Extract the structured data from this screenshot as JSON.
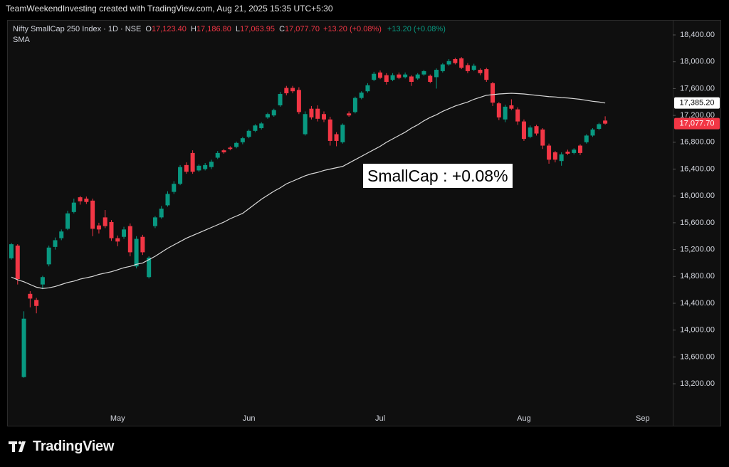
{
  "header": "TeamWeekendInvesting created with TradingView.com, Aug 21, 2025 15:35 UTC+5:30",
  "chart_data": {
    "type": "candlestick",
    "legend": {
      "symbol": "Nifty SmallCap 250 Index · 1D · NSE",
      "ohlc": [
        {
          "key": "O",
          "value": "17,123.40"
        },
        {
          "key": "H",
          "value": "17,186.80"
        },
        {
          "key": "L",
          "value": "17,063.95"
        },
        {
          "key": "C",
          "value": "17,077.70"
        }
      ],
      "change": [
        "+13.20 (+0.08%)",
        "+13.20 (+0.08%)"
      ]
    },
    "annotation": "SmallCap : +0.08%",
    "categories": [
      null,
      null,
      null,
      null,
      null,
      null,
      null,
      null,
      null,
      null,
      null,
      null,
      null,
      null,
      null,
      null,
      null,
      "May",
      null,
      null,
      null,
      null,
      null,
      null,
      null,
      null,
      null,
      null,
      null,
      null,
      null,
      null,
      null,
      null,
      null,
      null,
      null,
      null,
      "Jun",
      null,
      null,
      null,
      null,
      null,
      null,
      null,
      null,
      null,
      null,
      null,
      null,
      null,
      null,
      null,
      null,
      null,
      null,
      null,
      null,
      "Jul",
      null,
      null,
      null,
      null,
      null,
      null,
      null,
      null,
      null,
      null,
      null,
      null,
      null,
      null,
      null,
      null,
      null,
      null,
      null,
      null,
      null,
      null,
      "Aug",
      null,
      null,
      null,
      null,
      null,
      null,
      null,
      null,
      null,
      null,
      null,
      null,
      null,
      null,
      null,
      null,
      null,
      null,
      "Sep"
    ],
    "open": [
      15070,
      15260,
      13300,
      14540,
      14450,
      14680,
      14980,
      15240,
      15370,
      15510,
      15760,
      15980,
      15960,
      15930,
      15560,
      15680,
      15610,
      15370,
      15390,
      15550,
      14950,
      15390,
      14790,
      15550,
      15680,
      15860,
      16060,
      16180,
      16460,
      16640,
      16380,
      16400,
      16430,
      16570,
      16680,
      16720,
      16730,
      16800,
      16880,
      16970,
      17010,
      17170,
      17200,
      17350,
      17610,
      17610,
      17580,
      16920,
      17300,
      17300,
      17220,
      17140,
      16920,
      16800,
      17230,
      17250,
      17460,
      17560,
      17730,
      17840,
      17800,
      17730,
      17810,
      17770,
      17780,
      17750,
      17810,
      17790,
      17770,
      17860,
      17960,
      18040,
      18050,
      17950,
      17880,
      17880,
      17890,
      17680,
      17380,
      17140,
      17350,
      17290,
      17110,
      16880,
      17040,
      16990,
      16750,
      16650,
      16520,
      16660,
      16640,
      16750,
      16800,
      16900,
      17000,
      17123.4,
      null,
      null,
      null,
      null,
      null,
      null
    ],
    "high": [
      15300,
      15280,
      14280,
      14580,
      14480,
      14810,
      15260,
      15380,
      15500,
      15780,
      15960,
      16000,
      15990,
      15960,
      15600,
      15790,
      15640,
      15410,
      15540,
      15590,
      15400,
      15420,
      15100,
      15700,
      15850,
      16070,
      16220,
      16460,
      16500,
      16680,
      16470,
      16490,
      16540,
      16670,
      16700,
      16740,
      16810,
      16880,
      16990,
      17070,
      17100,
      17240,
      17300,
      17550,
      17640,
      17640,
      17620,
      17260,
      17340,
      17350,
      17260,
      17180,
      16950,
      17080,
      17260,
      17480,
      17560,
      17680,
      17850,
      17870,
      17830,
      17830,
      17840,
      17840,
      17800,
      17830,
      17880,
      17810,
      17900,
      17980,
      18040,
      18060,
      18070,
      17980,
      17970,
      17900,
      17910,
      17700,
      17400,
      17360,
      17440,
      17320,
      17140,
      17050,
      17060,
      17010,
      16780,
      16670,
      16650,
      16690,
      16710,
      16770,
      16920,
      17010,
      17090,
      17186.8,
      null,
      null,
      null,
      null,
      null,
      null
    ],
    "low": [
      15050,
      14680,
      13290,
      14340,
      14250,
      14610,
      14950,
      15200,
      15340,
      15490,
      15740,
      15870,
      15880,
      15400,
      15440,
      15520,
      15330,
      15250,
      15360,
      15100,
      14920,
      15120,
      14770,
      15520,
      15660,
      15840,
      16030,
      16160,
      16330,
      16330,
      16360,
      16380,
      16400,
      16550,
      16630,
      16680,
      16710,
      16770,
      16860,
      16950,
      16990,
      17150,
      17180,
      17330,
      17500,
      17530,
      17220,
      16900,
      17140,
      17110,
      17100,
      16750,
      16740,
      16780,
      17180,
      17230,
      17440,
      17540,
      17710,
      17740,
      17660,
      17710,
      17740,
      17750,
      17640,
      17730,
      17790,
      17680,
      17600,
      17840,
      17940,
      17960,
      17890,
      17830,
      17860,
      17800,
      17700,
      17340,
      17130,
      17100,
      17280,
      17060,
      16820,
      16860,
      16900,
      16700,
      16480,
      16500,
      16450,
      16610,
      16620,
      16610,
      16780,
      16880,
      16980,
      17063.95,
      null,
      null,
      null,
      null,
      null,
      null
    ],
    "close": [
      15280,
      14760,
      14170,
      14470,
      14360,
      14790,
      15230,
      15340,
      15470,
      15740,
      15900,
      15920,
      15910,
      15510,
      15500,
      15550,
      15370,
      15320,
      15500,
      15160,
      15360,
      15160,
      15080,
      15680,
      15810,
      16030,
      16180,
      16430,
      16360,
      16360,
      16450,
      16460,
      16510,
      16640,
      16650,
      16700,
      16790,
      16860,
      16970,
      17050,
      17080,
      17220,
      17280,
      17520,
      17530,
      17560,
      17250,
      17220,
      17170,
      17150,
      17140,
      16820,
      16820,
      17060,
      17200,
      17460,
      17540,
      17650,
      17820,
      17760,
      17700,
      17800,
      17760,
      17810,
      17700,
      17810,
      17860,
      17700,
      17880,
      17960,
      18010,
      17980,
      17910,
      17860,
      17940,
      17830,
      17730,
      17390,
      17170,
      17330,
      17300,
      17110,
      16850,
      17020,
      16930,
      16750,
      16540,
      16540,
      16620,
      16630,
      16690,
      16640,
      16900,
      16990,
      17070,
      17077.7,
      null,
      null,
      null,
      null,
      null,
      null
    ],
    "close_label": "17,077.70",
    "up_color": "#089981",
    "down_color": "#f23645",
    "sma": {
      "name": "SMA",
      "color": "#d9d9d9",
      "last_label": "17,385.20",
      "values": [
        14790,
        14750,
        14720,
        14680,
        14640,
        14620,
        14630,
        14650,
        14680,
        14710,
        14730,
        14760,
        14780,
        14800,
        14830,
        14850,
        14870,
        14900,
        14930,
        14950,
        14980,
        15000,
        15050,
        15100,
        15160,
        15220,
        15270,
        15320,
        15370,
        15410,
        15450,
        15490,
        15530,
        15570,
        15610,
        15660,
        15700,
        15740,
        15810,
        15880,
        15950,
        16010,
        16070,
        16120,
        16180,
        16220,
        16260,
        16300,
        16330,
        16350,
        16380,
        16400,
        16420,
        16440,
        16490,
        16540,
        16590,
        16640,
        16690,
        16740,
        16800,
        16850,
        16900,
        16950,
        17010,
        17060,
        17120,
        17170,
        17210,
        17260,
        17300,
        17340,
        17370,
        17400,
        17440,
        17470,
        17500,
        17510,
        17520,
        17525,
        17530,
        17525,
        17520,
        17510,
        17500,
        17490,
        17480,
        17475,
        17465,
        17460,
        17450,
        17440,
        17425,
        17410,
        17400,
        17385.2,
        null,
        null,
        null,
        null,
        null,
        null
      ]
    },
    "ylim": [
      12575,
      18602
    ],
    "yticks": [
      {
        "value": 13200,
        "label": "13,200.00"
      },
      {
        "value": 13600,
        "label": "13,600.00"
      },
      {
        "value": 14000,
        "label": "14,000.00"
      },
      {
        "value": 14400,
        "label": "14,400.00"
      },
      {
        "value": 14800,
        "label": "14,800.00"
      },
      {
        "value": 15200,
        "label": "15,200.00"
      },
      {
        "value": 15600,
        "label": "15,600.00"
      },
      {
        "value": 16000,
        "label": "16,000.00"
      },
      {
        "value": 16400,
        "label": "16,400.00"
      },
      {
        "value": 16800,
        "label": "16,800.00"
      },
      {
        "value": 17200,
        "label": "17,200.00"
      },
      {
        "value": 17600,
        "label": "17,600.00"
      },
      {
        "value": 18000,
        "label": "18,000.00"
      },
      {
        "value": 18400,
        "label": "18,400.00"
      }
    ],
    "grid": false
  },
  "watermark": "TradingView"
}
